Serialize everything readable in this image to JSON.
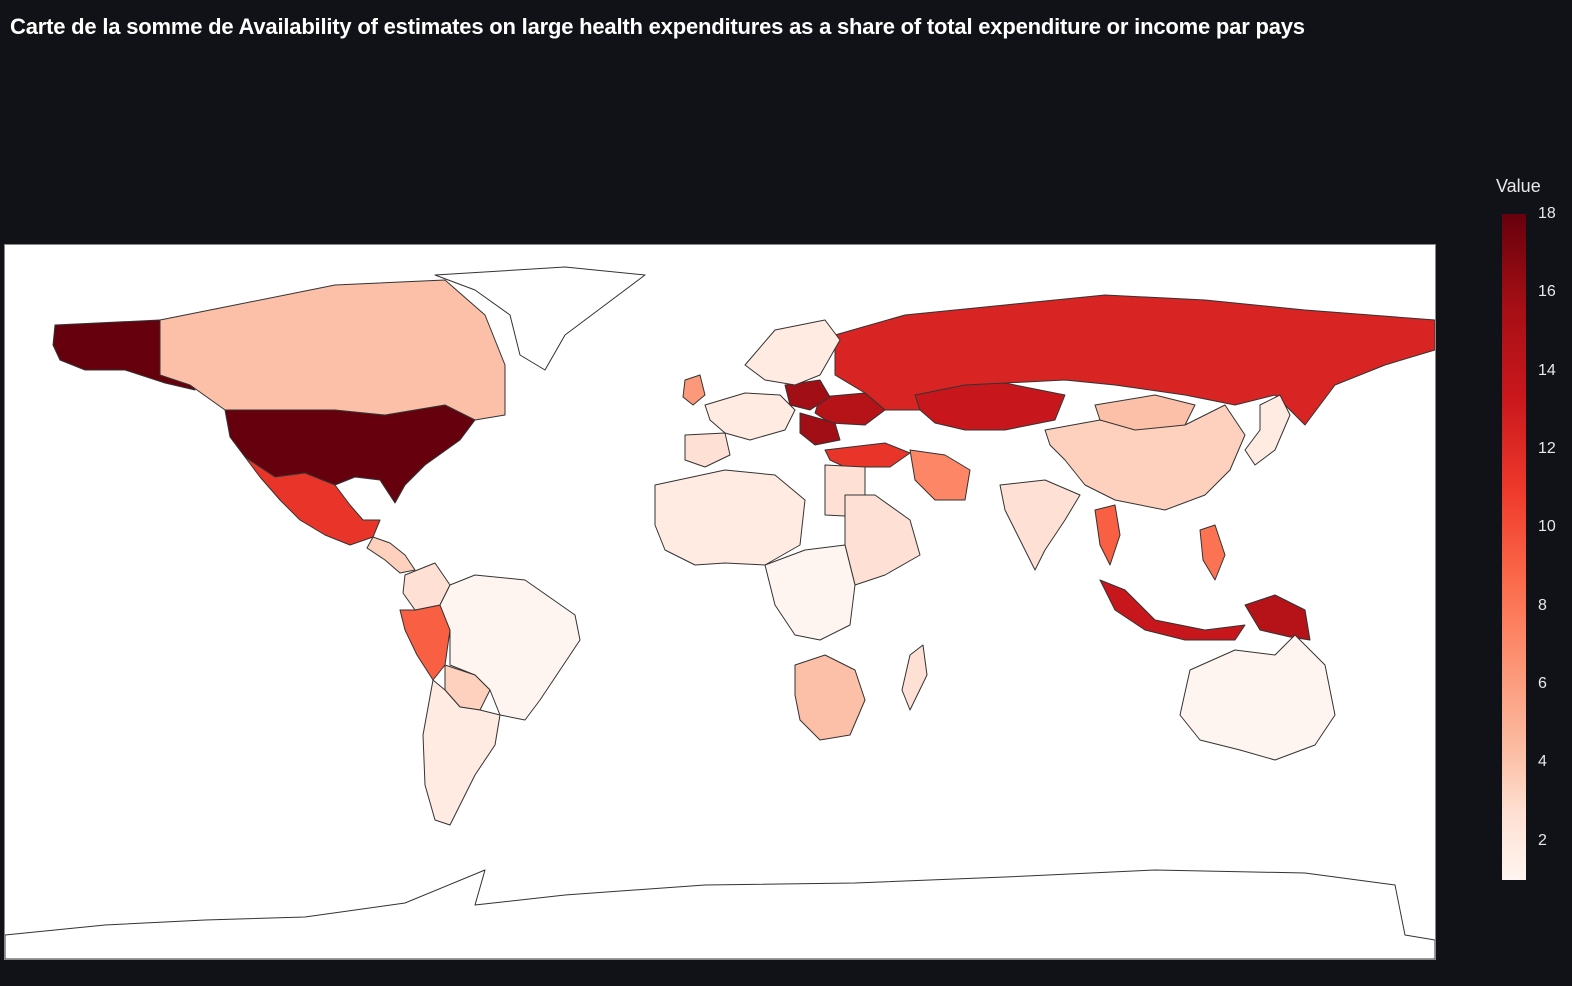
{
  "title": "Carte de la somme de Availability of estimates on large health expenditures as a share of total expenditure or income par pays",
  "legend": {
    "title": "Value",
    "ticks": [
      "18",
      "16",
      "14",
      "12",
      "10",
      "8",
      "6",
      "4",
      "2"
    ],
    "min": 1,
    "max": 18,
    "colorscale": [
      "#fff5f0",
      "#fee0d2",
      "#fcbba1",
      "#fc9272",
      "#fb6a4a",
      "#ef3b2c",
      "#cb181d",
      "#a50f15",
      "#67000d"
    ]
  },
  "chart_data": {
    "type": "choropleth",
    "projection": "equirectangular",
    "value_label": "Value",
    "regions": [
      {
        "id": "usa",
        "value": 18
      },
      {
        "id": "alaska",
        "value": 18
      },
      {
        "id": "canada",
        "value": 5
      },
      {
        "id": "greenland",
        "value": 0
      },
      {
        "id": "mexico",
        "value": 12
      },
      {
        "id": "central-america",
        "value": 4
      },
      {
        "id": "peru",
        "value": 10
      },
      {
        "id": "colombia",
        "value": 3
      },
      {
        "id": "brazil",
        "value": 1
      },
      {
        "id": "bolivia",
        "value": 4
      },
      {
        "id": "argentina-chile",
        "value": 2
      },
      {
        "id": "russia",
        "value": 13
      },
      {
        "id": "kazakhstan",
        "value": 14
      },
      {
        "id": "ukraine",
        "value": 15
      },
      {
        "id": "poland",
        "value": 16
      },
      {
        "id": "romania",
        "value": 16
      },
      {
        "id": "turkey",
        "value": 12
      },
      {
        "id": "iran",
        "value": 8
      },
      {
        "id": "china",
        "value": 4
      },
      {
        "id": "mongolia",
        "value": 5
      },
      {
        "id": "india",
        "value": 3
      },
      {
        "id": "indonesia",
        "value": 14
      },
      {
        "id": "papua",
        "value": 15
      },
      {
        "id": "vietnam",
        "value": 10
      },
      {
        "id": "philippines",
        "value": 9
      },
      {
        "id": "australia",
        "value": 1
      },
      {
        "id": "south-africa",
        "value": 5
      },
      {
        "id": "egypt",
        "value": 3
      },
      {
        "id": "madagascar",
        "value": 3
      },
      {
        "id": "west-africa",
        "value": 2
      },
      {
        "id": "east-africa",
        "value": 3
      },
      {
        "id": "central-africa",
        "value": 1
      },
      {
        "id": "uk",
        "value": 7
      },
      {
        "id": "western-europe",
        "value": 2
      },
      {
        "id": "iberia",
        "value": 3
      },
      {
        "id": "scandinavia",
        "value": 2
      },
      {
        "id": "japan",
        "value": 2
      },
      {
        "id": "antarctica",
        "value": 0
      }
    ]
  }
}
